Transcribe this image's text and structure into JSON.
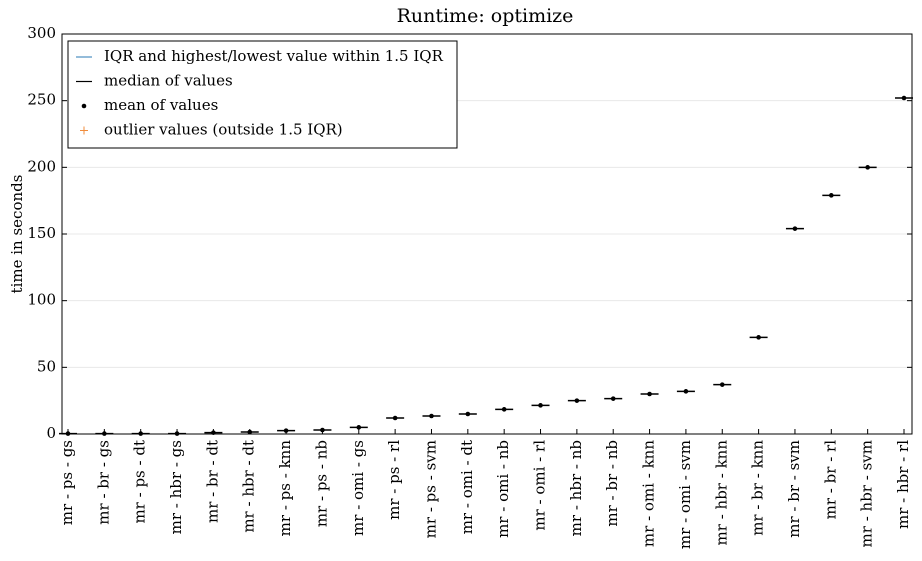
{
  "chart_data": {
    "type": "box",
    "title": "Runtime: optimize",
    "y_label": "time in seconds",
    "categories": [
      "mr - ps - gs",
      "mr - br - gs",
      "mr - ps - dt",
      "mr - hbr - gs",
      "mr - br - dt",
      "mr - hbr - dt",
      "mr - ps - knn",
      "mr - ps - nb",
      "mr - omi - gs",
      "mr - ps - rl",
      "mr - ps - svm",
      "mr - omi - dt",
      "mr - omi - nb",
      "mr - omi - rl",
      "mr - hbr - nb",
      "mr - br - nb",
      "mr - omi - knn",
      "mr - omi - svm",
      "mr - hbr - knn",
      "mr - br - knn",
      "mr - br - svm",
      "mr - br - rl",
      "mr - hbr - svm",
      "mr - hbr - rl"
    ],
    "medians": [
      0.3,
      0.3,
      0.3,
      0.3,
      1,
      1.5,
      2.5,
      3,
      5,
      12,
      13.5,
      15,
      18.5,
      21.5,
      25,
      26.5,
      30,
      32,
      37,
      72.5,
      154,
      179,
      200,
      252
    ],
    "means": [
      0.3,
      0.3,
      0.3,
      0.3,
      1,
      1.5,
      2.5,
      3,
      5,
      12,
      13.5,
      15,
      18.5,
      21.5,
      25,
      26.5,
      30,
      32,
      37,
      72.5,
      154,
      179,
      200,
      252
    ],
    "ylim": [
      0,
      300
    ],
    "yticks": [
      0,
      50,
      100,
      150,
      200,
      250,
      300
    ],
    "grid": true,
    "legend": [
      {
        "name": "IQR and highest/lowest value within 1.5 IQR",
        "color": "#4c8ec0"
      },
      {
        "name": "median of values",
        "color": "#000000"
      },
      {
        "name": "mean of values",
        "color": "#000000"
      },
      {
        "name": "outlier values (outside 1.5 IQR)",
        "color": "#f08c3c"
      }
    ]
  }
}
